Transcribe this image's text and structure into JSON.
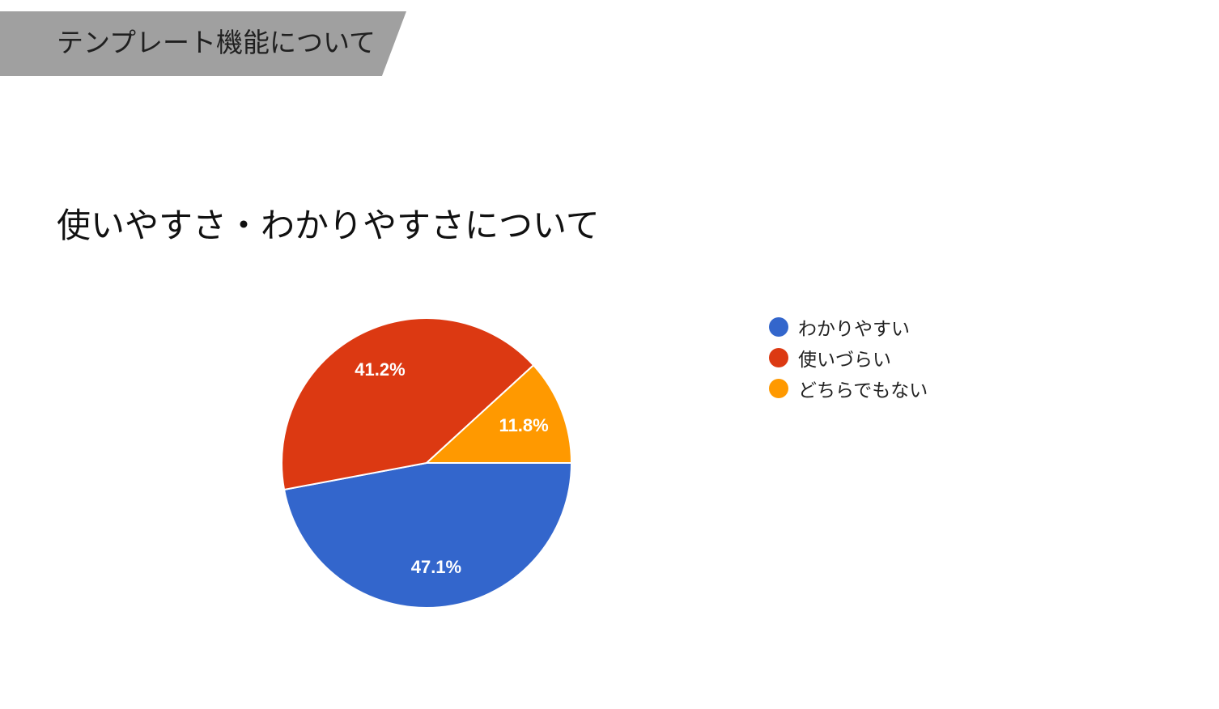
{
  "section_banner": {
    "title": "テンプレート機能について"
  },
  "chart_data": {
    "type": "pie",
    "title": "使いやすさ・わかりやすさについて",
    "legend_position": "right",
    "slices": [
      {
        "label": "わかりやすい",
        "value": 47.1,
        "value_label": "47.1%",
        "color": "#3366cc"
      },
      {
        "label": "使いづらい",
        "value": 41.2,
        "value_label": "41.2%",
        "color": "#dc3912"
      },
      {
        "label": "どちらでもない",
        "value": 11.8,
        "value_label": "11.8%",
        "color": "#ff9900"
      }
    ]
  }
}
